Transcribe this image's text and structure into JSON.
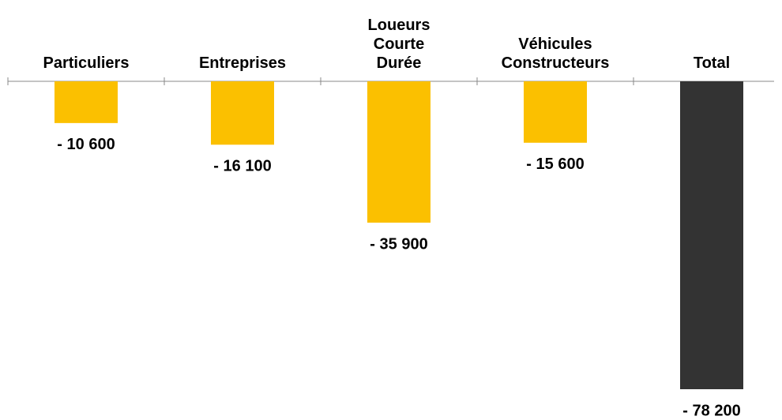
{
  "chart_data": {
    "type": "bar",
    "categories": [
      "Particuliers",
      "Entreprises",
      "Loueurs Courte Durée",
      "Véhicules Constructeurs",
      "Total"
    ],
    "values": [
      -10600,
      -16100,
      -35900,
      -15600,
      -78200
    ],
    "value_labels": [
      "- 10 600",
      "- 16 100",
      "- 35 900",
      "- 15 600",
      "- 78 200"
    ],
    "colors": [
      "#fbc000",
      "#fbc000",
      "#fbc000",
      "#fbc000",
      "#333333"
    ]
  }
}
